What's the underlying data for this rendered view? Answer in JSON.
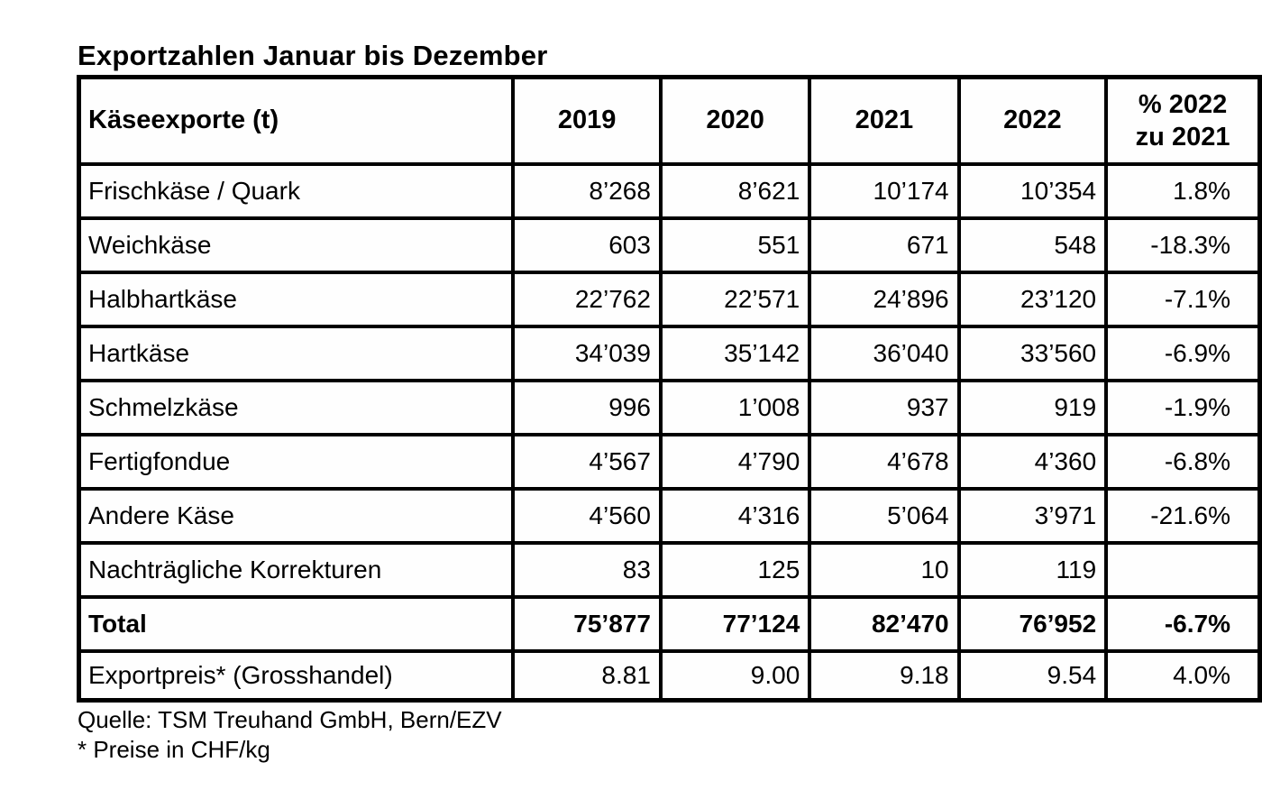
{
  "title": "Exportzahlen Januar bis Dezember",
  "table": {
    "header": {
      "label": "Käseexporte (t)",
      "years": [
        "2019",
        "2020",
        "2021",
        "2022"
      ],
      "pct_line1": "% 2022",
      "pct_line2": "zu 2021"
    },
    "rows": [
      {
        "label": "Frischkäse / Quark",
        "values": [
          "8’268",
          "8’621",
          "10’174",
          "10’354"
        ],
        "pct": "1.8%",
        "bold": false
      },
      {
        "label": "Weichkäse",
        "values": [
          "603",
          "551",
          "671",
          "548"
        ],
        "pct": "-18.3%",
        "bold": false
      },
      {
        "label": "Halbhartkäse",
        "values": [
          "22’762",
          "22’571",
          "24’896",
          "23’120"
        ],
        "pct": "-7.1%",
        "bold": false
      },
      {
        "label": "Hartkäse",
        "values": [
          "34’039",
          "35’142",
          "36’040",
          "33’560"
        ],
        "pct": "-6.9%",
        "bold": false
      },
      {
        "label": "Schmelzkäse",
        "values": [
          "996",
          "1’008",
          "937",
          "919"
        ],
        "pct": "-1.9%",
        "bold": false
      },
      {
        "label": "Fertigfondue",
        "values": [
          "4’567",
          "4’790",
          "4’678",
          "4’360"
        ],
        "pct": "-6.8%",
        "bold": false
      },
      {
        "label": "Andere Käse",
        "values": [
          "4’560",
          "4’316",
          "5’064",
          "3’971"
        ],
        "pct": "-21.6%",
        "bold": false
      },
      {
        "label": "Nachträgliche Korrekturen",
        "values": [
          "83",
          "125",
          "10",
          "119"
        ],
        "pct": "",
        "bold": false
      },
      {
        "label": "Total",
        "values": [
          "75’877",
          "77’124",
          "82’470",
          "76’952"
        ],
        "pct": "-6.7%",
        "bold": true
      },
      {
        "label": "Exportpreis* (Grosshandel)",
        "values": [
          "8.81",
          "9.00",
          "9.18",
          "9.54"
        ],
        "pct": "4.0%",
        "bold": false
      }
    ]
  },
  "footer": {
    "source": "Quelle: TSM Treuhand GmbH, Bern/EZV",
    "note": "* Preise in CHF/kg"
  }
}
